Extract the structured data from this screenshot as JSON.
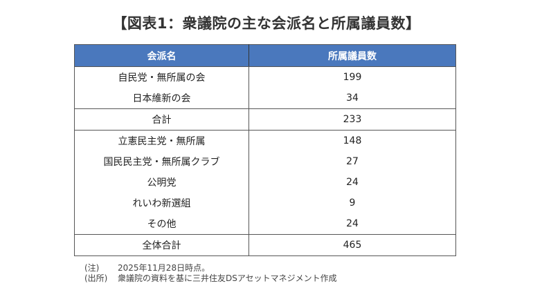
{
  "title": "【図表1：衆議院の主な会派名と所属議員数】",
  "table": {
    "headers": [
      "会派名",
      "所属議員数"
    ],
    "rows": [
      {
        "name": "自民党・無所属の会",
        "count": "199"
      },
      {
        "name": "日本維新の会",
        "count": "34"
      },
      {
        "name": "合計",
        "count": "233"
      },
      {
        "name": "立憲民主党・無所属",
        "count": "148"
      },
      {
        "name": "国民民主党・無所属クラブ",
        "count": "27"
      },
      {
        "name": "公明党",
        "count": "24"
      },
      {
        "name": "れいわ新選組",
        "count": "9"
      },
      {
        "name": "その他",
        "count": "24"
      },
      {
        "name": "全体合計",
        "count": "465"
      }
    ]
  },
  "notes": [
    {
      "label": "(注)",
      "text": "2025年11月28日時点。"
    },
    {
      "label": "(出所)",
      "text": "衆議院の資料を基に三井住友DSアセットマネジメント作成"
    }
  ],
  "colors": {
    "header_bg": "#4a78bd"
  }
}
